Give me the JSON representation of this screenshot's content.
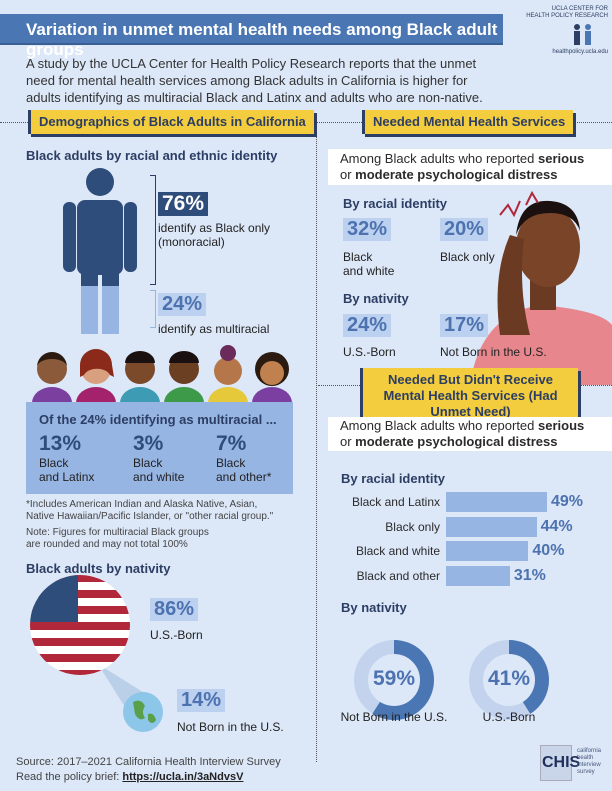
{
  "header": {
    "title": "Variation in unmet mental health needs among Black adult groups",
    "logo_line1": "UCLA CENTER FOR",
    "logo_line2": "HEALTH POLICY RESEARCH",
    "logo_url": "healthpolicy.ucla.edu"
  },
  "intro": "A study by the UCLA Center for Health Policy Research reports that the unmet need for mental health services among Black adults in California is higher for adults identifying as multiracial Black and Latinx and adults who are non-native.",
  "demographics": {
    "heading": "Demographics of Black Adults in California",
    "identity_title": "Black adults by racial and ethnic identity",
    "mono_pct": "76%",
    "mono_label": "identify as Black only (monoracial)",
    "multi_pct": "24%",
    "multi_label": "identify as multiracial",
    "multi_box": {
      "title": "Of the 24% identifying as multiracial ...",
      "items": [
        {
          "pct": "13%",
          "label1": "Black",
          "label2": "and Latinx"
        },
        {
          "pct": "3%",
          "label1": "Black",
          "label2": "and white"
        },
        {
          "pct": "7%",
          "label1": "Black",
          "label2": "and other*"
        }
      ]
    },
    "footnote": "*Includes American Indian and Alaska Native, Asian, Native Hawaiian/Pacific Islander, or \"other racial group.\"",
    "note": "Note: Figures for multiracial Black groups are rounded and may not total 100%",
    "nativity_title": "Black adults by nativity",
    "us_pct": "86%",
    "us_label": "U.S.-Born",
    "non_pct": "14%",
    "non_label": "Not Born in the U.S."
  },
  "needed": {
    "heading": "Needed Mental Health Services",
    "intro_a": "Among Black adults who reported ",
    "intro_b": "serious",
    "intro_c": "or ",
    "intro_d": "moderate psychological distress",
    "racial_title": "By racial identity",
    "racial": [
      {
        "pct": "32%",
        "label1": "Black",
        "label2": "and white"
      },
      {
        "pct": "20%",
        "label1": "Black only",
        "label2": ""
      }
    ],
    "nativity_title": "By nativity",
    "nativity": [
      {
        "pct": "24%",
        "label": "U.S.-Born"
      },
      {
        "pct": "17%",
        "label": "Not Born in the U.S."
      }
    ]
  },
  "unmet": {
    "heading": "Needed But Didn't Receive Mental Health Services (Had Unmet Need)",
    "intro_a": "Among Black adults who reported ",
    "intro_b": "serious",
    "intro_c": "or ",
    "intro_d": "moderate psychological distress",
    "racial_title": "By racial identity",
    "nativity_title": "By nativity"
  },
  "chart_data": [
    {
      "type": "bar",
      "title": "By racial identity",
      "categories": [
        "Black and Latinx",
        "Black only",
        "Black and white",
        "Black and other"
      ],
      "values": [
        49,
        44,
        40,
        31
      ],
      "labels": [
        "49%",
        "44%",
        "40%",
        "31%"
      ],
      "unit": "%"
    },
    {
      "type": "pie",
      "title": "By nativity",
      "categories": [
        "Not Born in the U.S.",
        "U.S.-Born"
      ],
      "values": [
        59,
        41
      ],
      "labels": [
        "59%",
        "41%"
      ],
      "unit": "%"
    }
  ],
  "colors": {
    "accent": "#4a77b4",
    "highlight": "#f3cd3d",
    "navy": "#2c3e63",
    "bar": "#97b5e3"
  },
  "footer": {
    "source": "Source: 2017–2021 California Health Interview Survey",
    "brief_label": "Read the policy brief: ",
    "brief_link": "https://ucla.in/3aNdvsV",
    "chis": "CHIS",
    "chis_sub": "california health interview survey"
  }
}
